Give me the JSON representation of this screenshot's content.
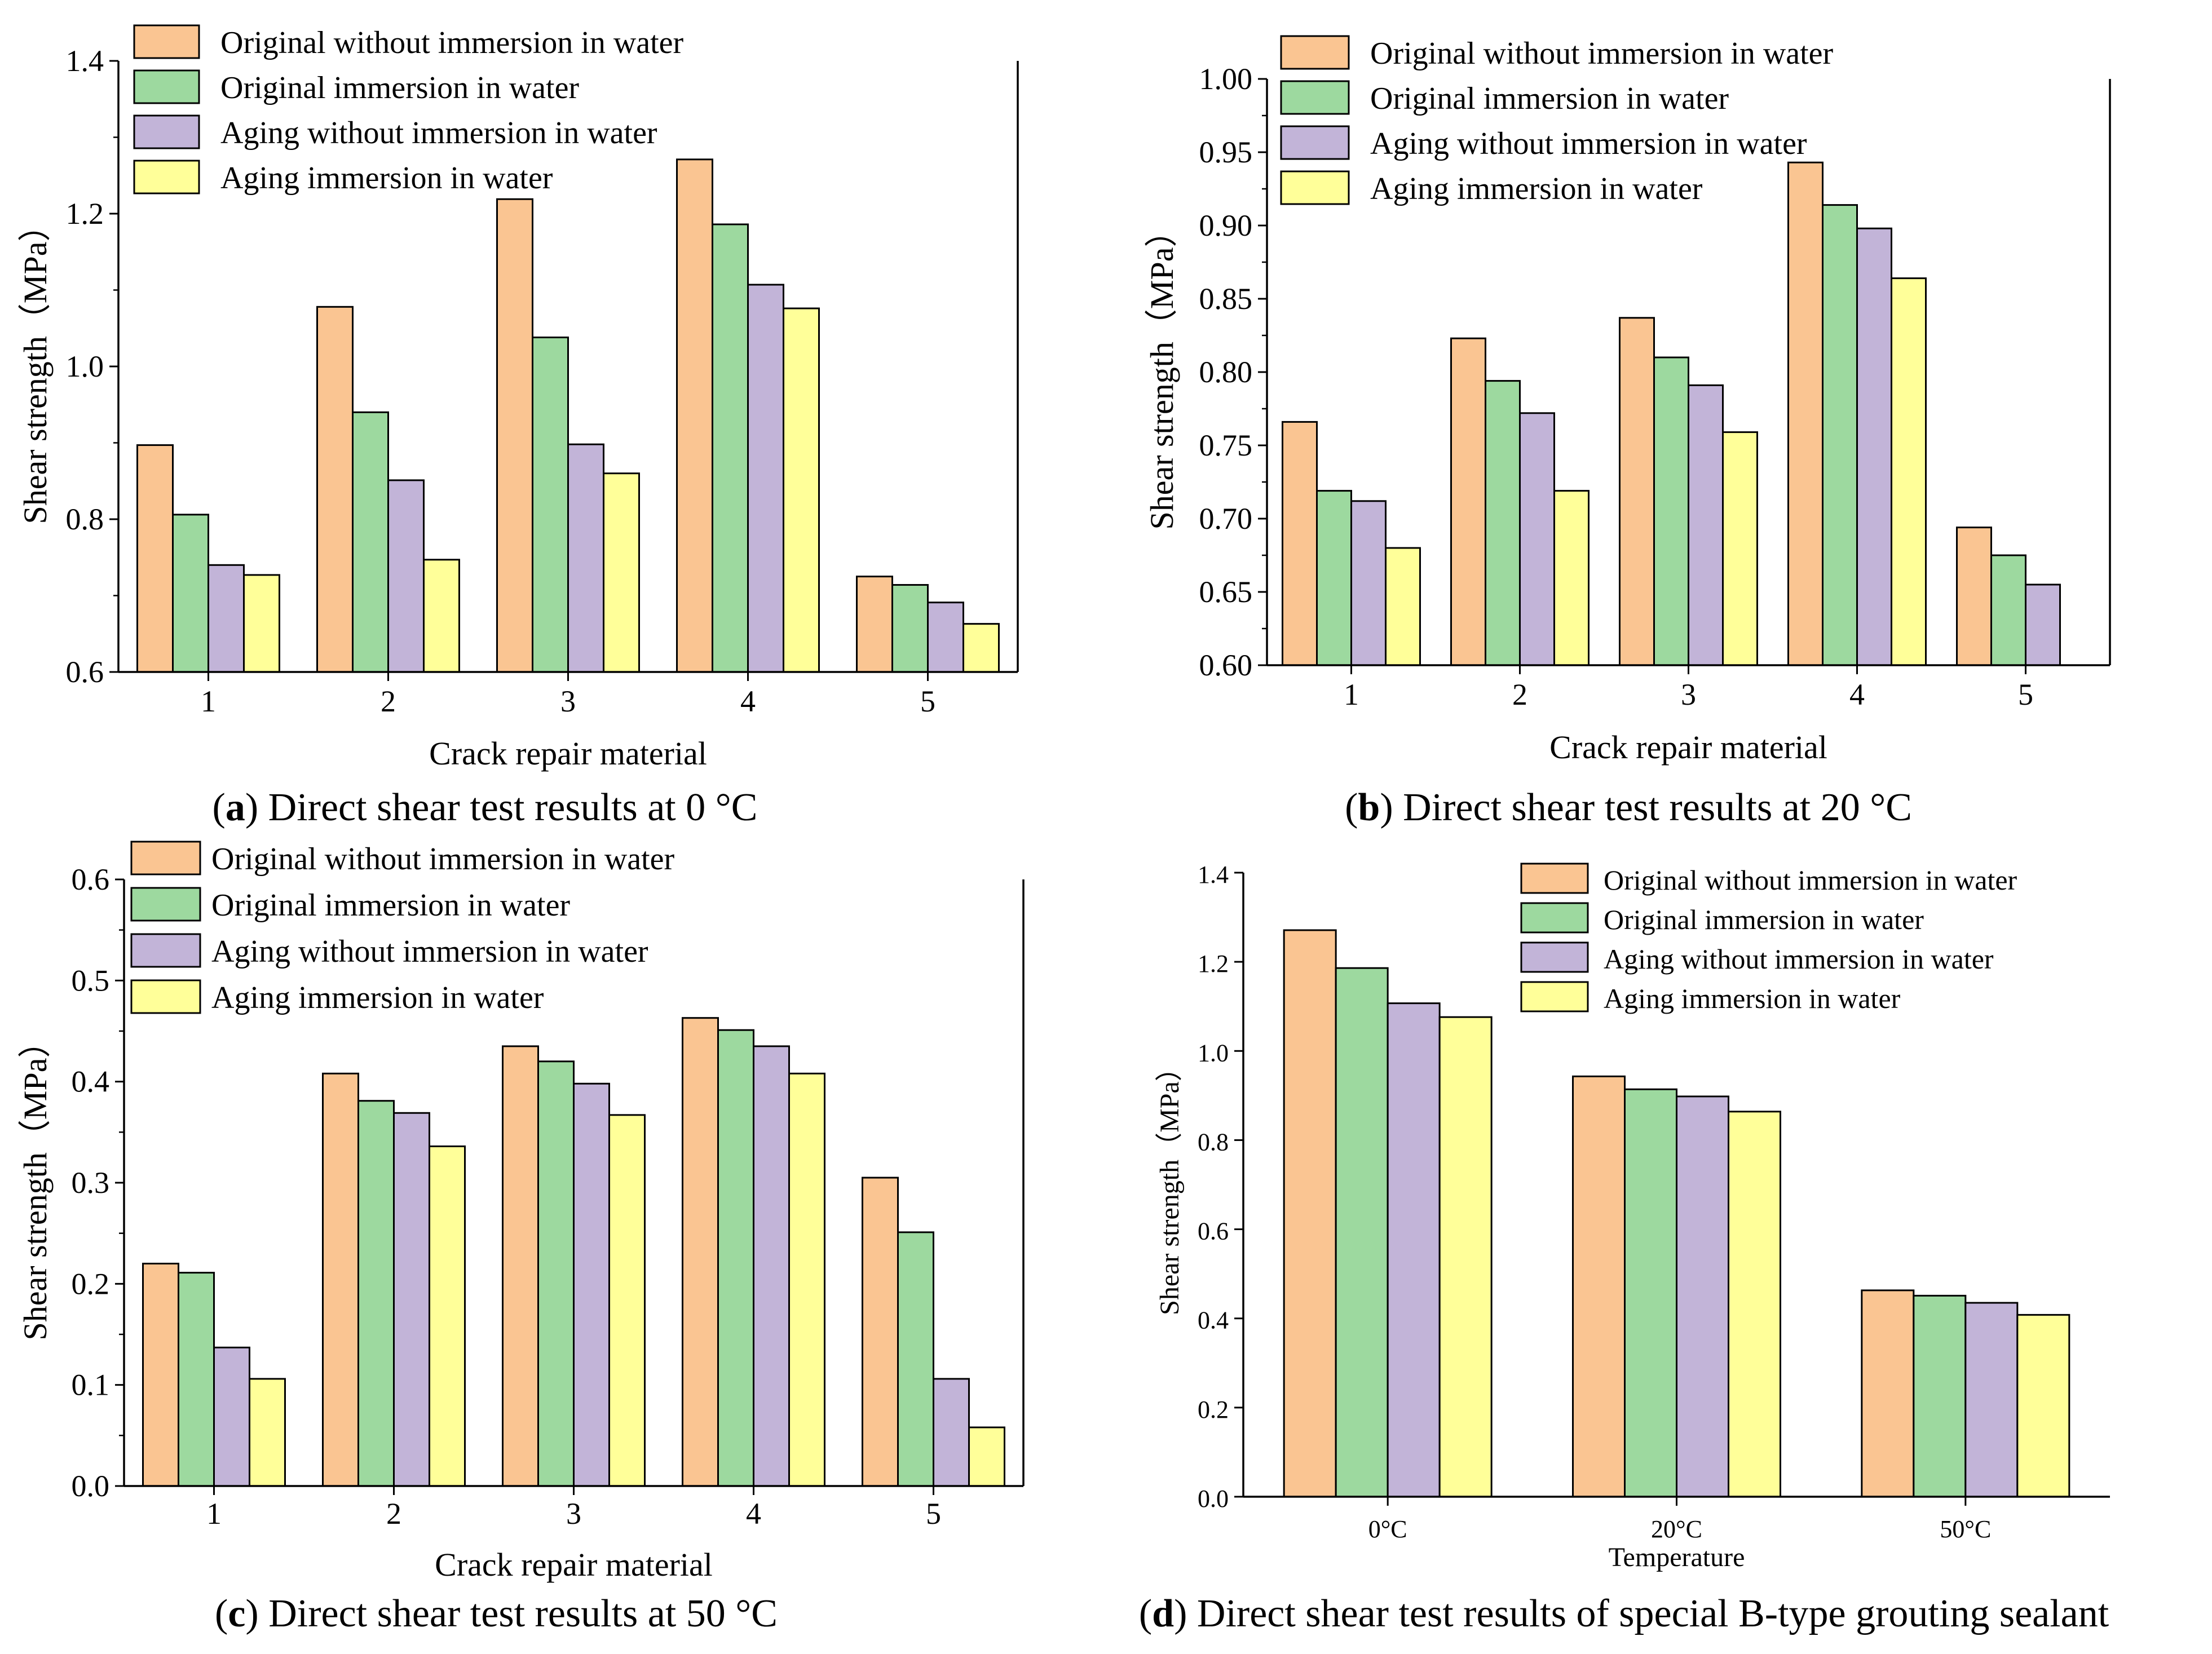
{
  "series_colors": [
    "#FAC592",
    "#9DD99F",
    "#C2B4D8",
    "#FFFF99"
  ],
  "chart_data": [
    {
      "type": "bar",
      "panel": "a",
      "caption_letter": "a",
      "caption_text": " Direct shear test results at 0 °C",
      "xlabel": "Crack repair material",
      "ylabel": "Shear strength（MPa）",
      "ylim": [
        0.6,
        1.4
      ],
      "yticks": [
        "0.6",
        "0.8",
        "1.0",
        "1.2",
        "1.4"
      ],
      "legend_position": "top-left",
      "categories": [
        "1",
        "2",
        "3",
        "4",
        "5"
      ],
      "series": [
        {
          "name": "Original without immersion in water",
          "values": [
            0.897,
            1.078,
            1.219,
            1.271,
            0.725
          ]
        },
        {
          "name": "Original immersion in water",
          "values": [
            0.806,
            0.94,
            1.038,
            1.186,
            0.714
          ]
        },
        {
          "name": "Aging without immersion in water",
          "values": [
            0.74,
            0.851,
            0.898,
            1.107,
            0.691
          ]
        },
        {
          "name": "Aging immersion in water",
          "values": [
            0.727,
            0.747,
            0.86,
            1.076,
            0.663
          ]
        }
      ]
    },
    {
      "type": "bar",
      "panel": "b",
      "caption_letter": "b",
      "caption_text": " Direct shear test results at 20 °C",
      "xlabel": "Crack repair material",
      "ylabel": "Shear strength（MPa）",
      "ylim": [
        0.6,
        1.0
      ],
      "yticks": [
        "0.60",
        "0.65",
        "0.70",
        "0.75",
        "0.80",
        "0.85",
        "0.90",
        "0.95",
        "1.00"
      ],
      "legend_position": "top-left",
      "categories": [
        "1",
        "2",
        "3",
        "4",
        "5"
      ],
      "series": [
        {
          "name": "Original without immersion in water",
          "values": [
            0.766,
            0.823,
            0.837,
            0.943,
            0.694
          ]
        },
        {
          "name": "Original immersion in water",
          "values": [
            0.719,
            0.794,
            0.81,
            0.914,
            0.675
          ]
        },
        {
          "name": "Aging without immersion in water",
          "values": [
            0.712,
            0.772,
            0.791,
            0.898,
            0.655
          ]
        },
        {
          "name": "Aging immersion in water",
          "values": [
            0.68,
            0.719,
            0.759,
            0.864,
            null
          ]
        }
      ]
    },
    {
      "type": "bar",
      "panel": "c",
      "caption_letter": "c",
      "caption_text": " Direct shear test results at 50 °C",
      "xlabel": "Crack repair material",
      "ylabel": "Shear strength（MPa）",
      "ylim": [
        0.0,
        0.6
      ],
      "yticks": [
        "0.0",
        "0.1",
        "0.2",
        "0.3",
        "0.4",
        "0.5",
        "0.6"
      ],
      "legend_position": "top-left",
      "categories": [
        "1",
        "2",
        "3",
        "4",
        "5"
      ],
      "series": [
        {
          "name": "Original without immersion in water",
          "values": [
            0.22,
            0.408,
            0.435,
            0.463,
            0.305
          ]
        },
        {
          "name": "Original immersion in water",
          "values": [
            0.211,
            0.381,
            0.42,
            0.451,
            0.251
          ]
        },
        {
          "name": "Aging without immersion in water",
          "values": [
            0.137,
            0.369,
            0.398,
            0.435,
            0.106
          ]
        },
        {
          "name": "Aging immersion in water",
          "values": [
            0.106,
            0.336,
            0.367,
            0.408,
            0.058
          ]
        }
      ]
    },
    {
      "type": "bar",
      "panel": "d",
      "caption_letter": "d",
      "caption_text": " Direct shear test results of special B-type grouting sealant",
      "xlabel": "Temperature",
      "ylabel": "Shear strength（MPa）",
      "ylim": [
        0.0,
        1.4
      ],
      "yticks": [
        "0.0",
        "0.2",
        "0.4",
        "0.6",
        "0.8",
        "1.0",
        "1.2",
        "1.4"
      ],
      "legend_position": "top-right",
      "categories": [
        "0°C",
        "20°C",
        "50°C"
      ],
      "series": [
        {
          "name": "Original without immersion in water",
          "values": [
            1.271,
            0.943,
            0.463
          ]
        },
        {
          "name": "Original immersion in water",
          "values": [
            1.186,
            0.914,
            0.451
          ]
        },
        {
          "name": "Aging without immersion in water",
          "values": [
            1.107,
            0.898,
            0.435
          ]
        },
        {
          "name": "Aging immersion in water",
          "values": [
            1.076,
            0.864,
            0.408
          ]
        }
      ]
    }
  ]
}
